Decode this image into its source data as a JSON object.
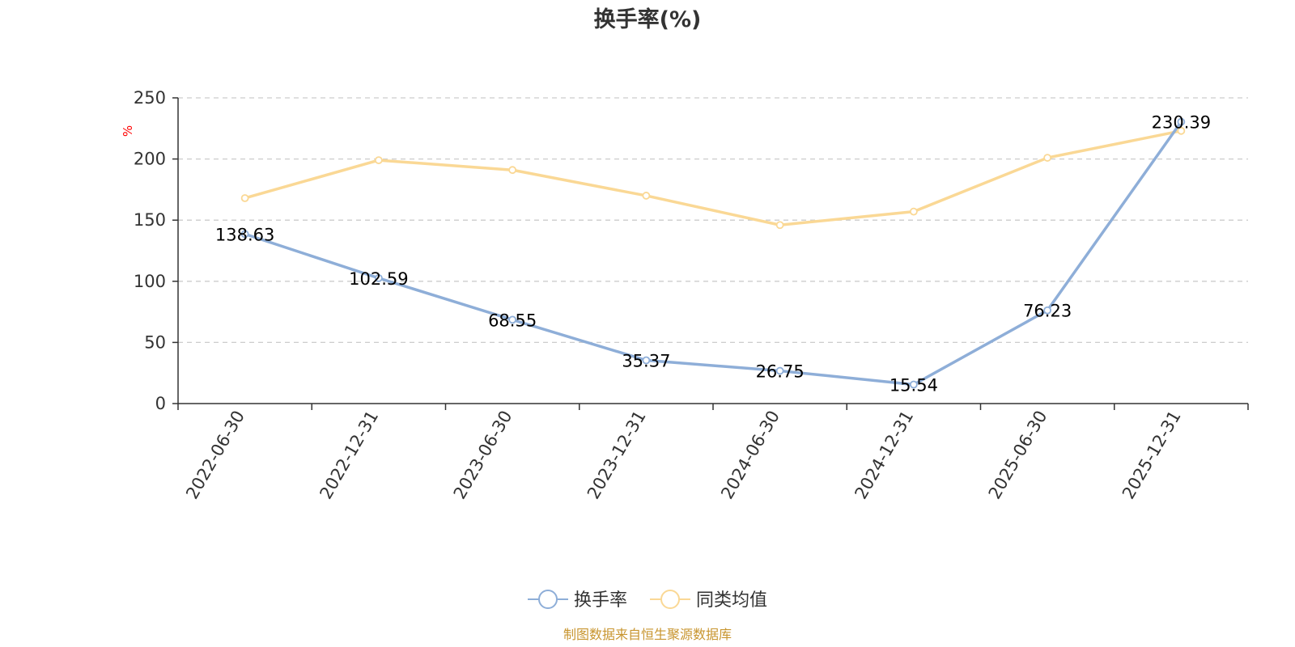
{
  "chart_data": {
    "type": "line",
    "title": "换手率(%)",
    "ylabel": "%",
    "categories": [
      "2022-06-30",
      "2022-12-31",
      "2023-06-30",
      "2023-12-31",
      "2024-06-30",
      "2024-12-31",
      "2025-06-30",
      "2025-12-31"
    ],
    "ylim": [
      0,
      250
    ],
    "yticks": [
      0,
      50,
      100,
      150,
      200,
      250
    ],
    "grid": true,
    "legend_position": "bottom-center",
    "series": [
      {
        "name": "换手率",
        "color": "#8eaed8",
        "values": [
          138.63,
          102.59,
          68.55,
          35.37,
          26.75,
          15.54,
          76.23,
          230.39
        ],
        "labels": [
          "138.63",
          "102.59",
          "68.55",
          "35.37",
          "26.75",
          "15.54",
          "76.23",
          "230.39"
        ]
      },
      {
        "name": "同类均值",
        "color": "#fad895",
        "values": [
          168,
          199,
          191,
          170,
          146,
          157,
          201,
          223
        ]
      }
    ]
  },
  "source": "制图数据来自恒生聚源数据库"
}
